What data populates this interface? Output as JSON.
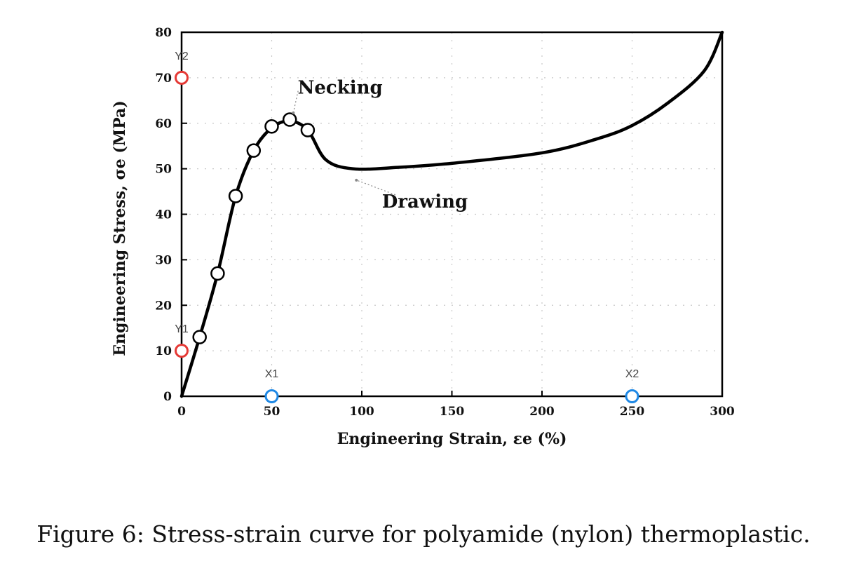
{
  "chart_data": {
    "type": "line",
    "xlabel": "Engineering Strain,  εe (%)",
    "ylabel": "Engineering Stress,  σe (MPa)",
    "xlim": [
      0,
      300
    ],
    "ylim": [
      0,
      80
    ],
    "x_ticks": [
      0,
      50,
      100,
      150,
      200,
      250,
      300
    ],
    "y_ticks": [
      0,
      10,
      20,
      30,
      40,
      50,
      60,
      70,
      80
    ],
    "grid": true,
    "series": [
      {
        "x": [
          0,
          10,
          20,
          30,
          40,
          50,
          60,
          70,
          80,
          95,
          120,
          150,
          200,
          230,
          250,
          270,
          290,
          300
        ],
        "y": [
          0,
          13,
          27,
          44,
          54,
          59,
          60.5,
          58.5,
          52,
          50,
          50.3,
          51.2,
          53.5,
          56.5,
          59.5,
          64.5,
          71.5,
          80
        ]
      }
    ],
    "data_points": [
      {
        "x": 10,
        "y": 13
      },
      {
        "x": 20,
        "y": 27
      },
      {
        "x": 30,
        "y": 44
      },
      {
        "x": 40,
        "y": 54
      },
      {
        "x": 50,
        "y": 59.3
      },
      {
        "x": 60,
        "y": 60.8
      },
      {
        "x": 70,
        "y": 58.5
      }
    ],
    "annotations": [
      {
        "text": "Necking",
        "x": 88,
        "y": 66.5,
        "target_x": 62,
        "target_y": 62.3
      },
      {
        "text": "Drawing",
        "x": 135,
        "y": 41.5,
        "target_x": 97,
        "target_y": 47.5
      }
    ],
    "axis_markers": [
      {
        "label": "Y2",
        "axis": "y",
        "value": 70,
        "color": "#e53935"
      },
      {
        "label": "Y1",
        "axis": "y",
        "value": 10,
        "color": "#e53935"
      },
      {
        "label": "X1",
        "axis": "x",
        "value": 50,
        "color": "#1e88e5"
      },
      {
        "label": "X2",
        "axis": "x",
        "value": 250,
        "color": "#1e88e5"
      }
    ]
  },
  "caption": "Figure 6: Stress-strain curve for polyamide (nylon) thermoplastic."
}
